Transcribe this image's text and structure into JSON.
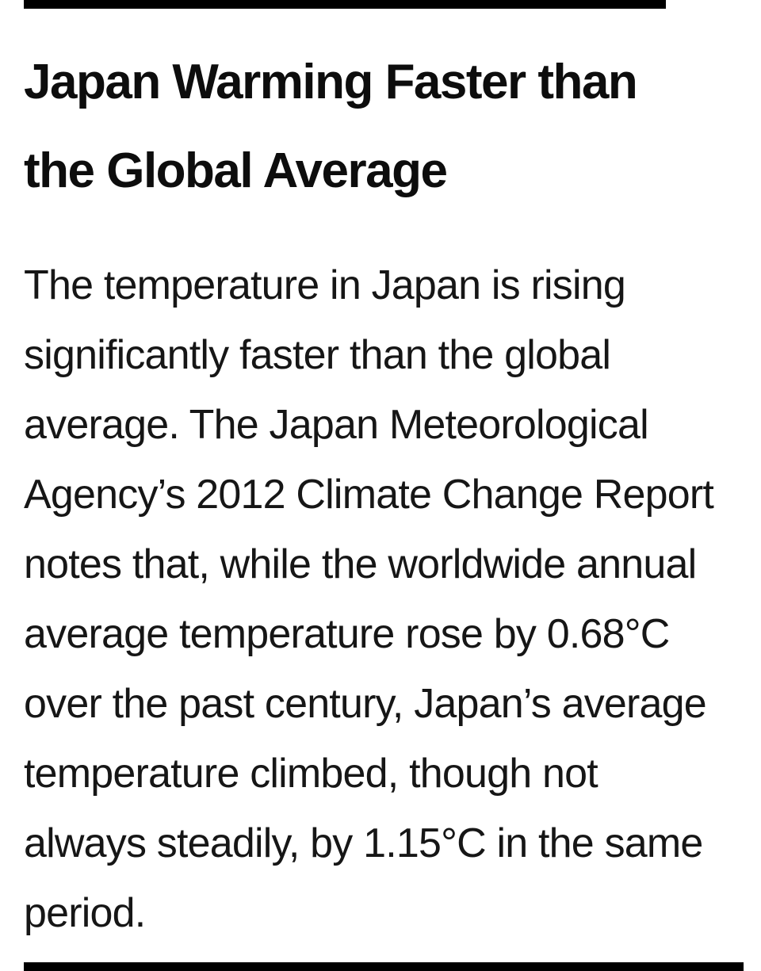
{
  "colors": {
    "background": "#ffffff",
    "heading": "#0d0d0d",
    "body_text": "#161616",
    "crop_bar": "#000000"
  },
  "article": {
    "heading": "Japan Warming Faster than the Global Average",
    "heading_lines": [
      "Japan Warming Faster than",
      "the Global Average"
    ],
    "body_text": "The temperature in Japan is rising significantly faster than the global average. The Japan Meteorological Agency’s 2012 Climate Change Report notes that, while the worldwide annual average temperature rose by 0.68°C over the past century, Japan’s average temperature climbed, though not always steadily, by 1.15°C in the same period.",
    "body_lines": [
      "The temperature in Japan is rising",
      "significantly faster than the global",
      "average. The Japan Meteorological",
      "Agency’s 2012 Climate Change Report",
      "notes that, while the worldwide annual",
      "average temperature rose by 0.68°C",
      "over the past century, Japan’s average",
      "temperature climbed, though not",
      "always steadily, by 1.15°C in the same",
      "period."
    ],
    "figures": {
      "worldwide_rise": "0.68°C",
      "japan_rise": "1.15°C",
      "report": "Japan Meteorological Agency’s 2012 Climate Change Report"
    }
  }
}
